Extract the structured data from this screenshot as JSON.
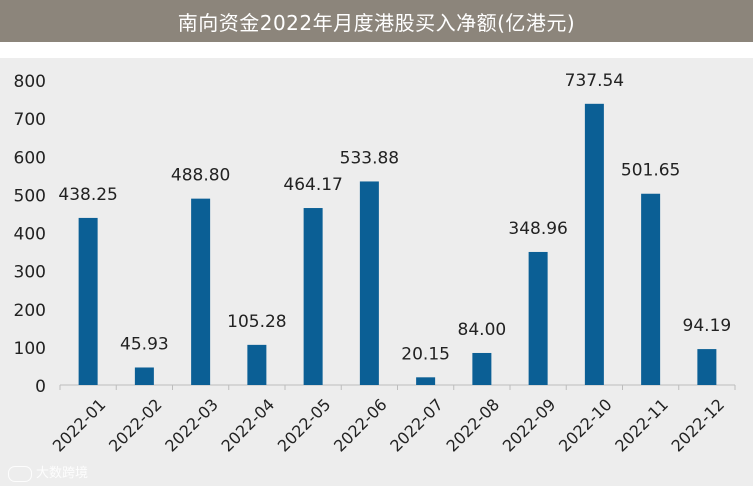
{
  "chart_data": {
    "type": "bar",
    "title": "南向资金2022年月度港股买入净额(亿港元)",
    "categories": [
      "2022-01",
      "2022-02",
      "2022-03",
      "2022-04",
      "2022-05",
      "2022-06",
      "2022-07",
      "2022-08",
      "2022-09",
      "2022-10",
      "2022-11",
      "2022-12"
    ],
    "values": [
      438.25,
      45.93,
      488.8,
      105.28,
      464.17,
      533.88,
      20.15,
      84.0,
      348.96,
      737.54,
      501.65,
      94.19
    ],
    "data_labels": [
      "438.25",
      "45.93",
      "488.80",
      "105.28",
      "464.17",
      "533.88",
      "20.15",
      "84.00",
      "348.96",
      "737.54",
      "501.65",
      "94.19"
    ],
    "ylim": [
      0,
      800
    ],
    "yticks": [
      0,
      100,
      200,
      300,
      400,
      500,
      600,
      700,
      800
    ],
    "xlabel": "",
    "ylabel": "",
    "grid": false,
    "bar_color": "#0b5f95"
  },
  "watermark": "大数跨境"
}
